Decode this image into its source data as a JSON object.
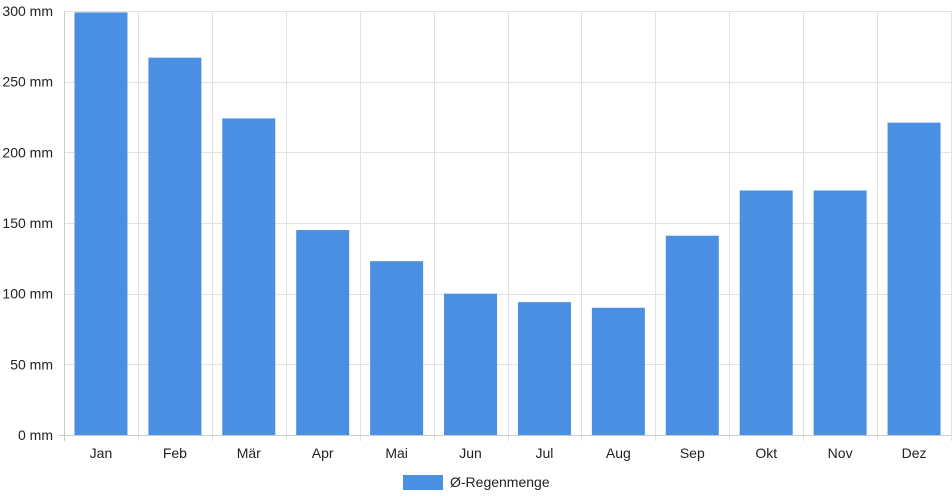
{
  "chart_data": {
    "type": "bar",
    "categories": [
      "Jan",
      "Feb",
      "Mär",
      "Apr",
      "Mai",
      "Jun",
      "Jul",
      "Aug",
      "Sep",
      "Okt",
      "Nov",
      "Dez"
    ],
    "series": [
      {
        "name": "Ø-Regenmenge",
        "values": [
          299,
          267,
          224,
          145,
          123,
          100,
          94,
          90,
          141,
          173,
          173,
          221
        ],
        "color": "#4a90e2"
      }
    ],
    "y_unit": "mm",
    "ylim": [
      0,
      300
    ],
    "yticks": [
      0,
      50,
      100,
      150,
      200,
      250,
      300
    ],
    "ytick_labels": [
      "0 mm",
      "50 mm",
      "100 mm",
      "150 mm",
      "200 mm",
      "250 mm",
      "300 mm"
    ],
    "grid": true,
    "legend_position": "bottom-center"
  }
}
